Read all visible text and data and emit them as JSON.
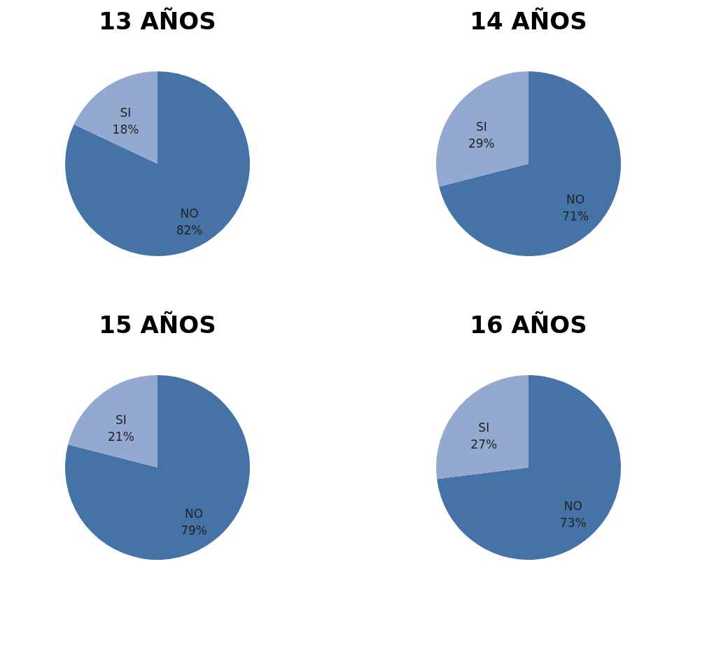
{
  "chart_data": [
    {
      "type": "pie",
      "title": "13 AÑOS",
      "categories": [
        "NO",
        "SI"
      ],
      "values": [
        82,
        18
      ],
      "colors": [
        "#4572a7",
        "#93a9cf"
      ],
      "value_labels": [
        "82%",
        "18%"
      ],
      "legend": false
    },
    {
      "type": "pie",
      "title": "14 AÑOS",
      "categories": [
        "NO",
        "SI"
      ],
      "values": [
        71,
        29
      ],
      "colors": [
        "#4572a7",
        "#93a9cf"
      ],
      "value_labels": [
        "71%",
        "29%"
      ],
      "legend": false
    },
    {
      "type": "pie",
      "title": "15 AÑOS",
      "categories": [
        "NO",
        "SI"
      ],
      "values": [
        79,
        21
      ],
      "colors": [
        "#4572a7",
        "#93a9cf"
      ],
      "value_labels": [
        "79%",
        "21%"
      ],
      "legend": false
    },
    {
      "type": "pie",
      "title": "16 AÑOS",
      "categories": [
        "NO",
        "SI"
      ],
      "values": [
        73,
        27
      ],
      "colors": [
        "#4572a7",
        "#93a9cf"
      ],
      "value_labels": [
        "73%",
        "27%"
      ],
      "legend": false
    }
  ]
}
